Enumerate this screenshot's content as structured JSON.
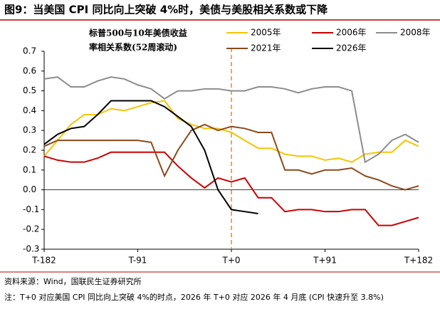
{
  "chart_data": {
    "type": "line",
    "title": "图9：当美国 CPI 同比向上突破 4%时，美债与美股相关系数或下降",
    "note_lines": [
      "标普500与10年美债收益",
      "率相关系数(52周滚动)"
    ],
    "x": [
      -182,
      -169,
      -156,
      -143,
      -130,
      -117,
      -104,
      -91,
      -78,
      -65,
      -52,
      -39,
      -26,
      -13,
      0,
      13,
      26,
      39,
      52,
      65,
      78,
      91,
      104,
      117,
      130,
      143,
      156,
      169,
      182
    ],
    "series": [
      {
        "name": "2005年",
        "color": "#f5c400",
        "values": [
          0.17,
          0.25,
          0.33,
          0.38,
          0.38,
          0.41,
          0.4,
          0.42,
          0.44,
          0.45,
          0.36,
          0.33,
          0.31,
          0.31,
          0.29,
          0.25,
          0.21,
          0.21,
          0.18,
          0.17,
          0.17,
          0.15,
          0.16,
          0.14,
          0.18,
          0.19,
          0.19,
          0.25,
          0.22
        ]
      },
      {
        "name": "2006年",
        "color": "#cc0000",
        "values": [
          0.17,
          0.15,
          0.14,
          0.14,
          0.16,
          0.19,
          0.19,
          0.19,
          0.19,
          0.19,
          0.12,
          0.06,
          0.01,
          0.06,
          0.04,
          0.06,
          -0.04,
          -0.04,
          -0.11,
          -0.1,
          -0.1,
          -0.11,
          -0.11,
          -0.1,
          -0.1,
          -0.18,
          -0.18,
          -0.16,
          -0.14
        ]
      },
      {
        "name": "2008年",
        "color": "#8c8c8c",
        "values": [
          0.56,
          0.57,
          0.52,
          0.52,
          0.55,
          0.57,
          0.56,
          0.53,
          0.51,
          0.46,
          0.5,
          0.5,
          0.51,
          0.51,
          0.5,
          0.5,
          0.52,
          0.52,
          0.51,
          0.49,
          0.51,
          0.52,
          0.52,
          0.5,
          0.14,
          0.18,
          0.25,
          0.28,
          0.24
        ]
      },
      {
        "name": "2021年",
        "color": "#8b4a1c",
        "values": [
          0.22,
          0.25,
          0.25,
          0.25,
          0.25,
          0.25,
          0.25,
          0.25,
          0.24,
          0.07,
          0.2,
          0.3,
          0.33,
          0.3,
          0.32,
          0.31,
          0.29,
          0.29,
          0.1,
          0.1,
          0.08,
          0.1,
          0.1,
          0.11,
          0.07,
          0.05,
          0.02,
          0.0,
          0.02
        ]
      },
      {
        "name": "2026年",
        "color": "#000000",
        "values": [
          0.23,
          0.28,
          0.31,
          0.32,
          0.38,
          0.45,
          0.45,
          0.45,
          0.45,
          0.42,
          0.37,
          0.32,
          0.2,
          0.0,
          -0.1,
          -0.11,
          -0.12,
          null,
          null,
          null,
          null,
          null,
          null,
          null,
          null,
          null,
          null,
          null,
          null
        ]
      }
    ],
    "xlim": [
      -182,
      182
    ],
    "xticks": [
      {
        "value": -182,
        "label": "T-182"
      },
      {
        "value": -91,
        "label": "T-91"
      },
      {
        "value": 0,
        "label": "T+0"
      },
      {
        "value": 91,
        "label": "T+91"
      },
      {
        "value": 182,
        "label": "T+182"
      }
    ],
    "ylim": [
      -0.3,
      0.7
    ],
    "yticks": [
      0.7,
      0.6,
      0.5,
      0.4,
      0.3,
      0.2,
      0.1,
      {
        "value": 0,
        "label": "0.0"
      },
      -0.1,
      -0.2,
      -0.3
    ],
    "vline": 0,
    "vline_color": "#e8862a",
    "source": "资料来源：Wind，国联民生证券研究所",
    "footnote": "注：T+0 对应美国 CPI 同比向上突破 4%的时点，2026 年 T+0 对应 2026 年 4 月底 (CPI 快速升至 3.8%)"
  }
}
